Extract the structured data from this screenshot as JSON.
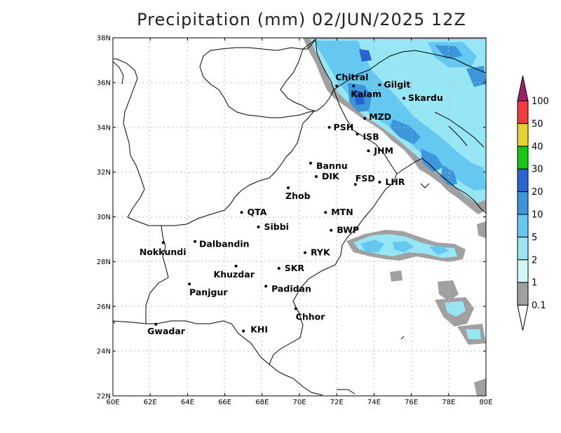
{
  "title": "Precipitation (mm) 02/JUN/2025 12Z",
  "axes": {
    "x_ticks": [
      "60E",
      "62E",
      "64E",
      "66E",
      "68E",
      "70E",
      "72E",
      "74E",
      "76E",
      "78E",
      "80E"
    ],
    "y_ticks": [
      "22N",
      "24N",
      "26N",
      "28N",
      "30N",
      "32N",
      "34N",
      "36N",
      "38N"
    ],
    "lon_range": [
      60,
      80
    ],
    "lat_range": [
      22,
      38
    ]
  },
  "colorbar": {
    "levels": [
      "0.1",
      "1",
      "2",
      "5",
      "10",
      "20",
      "30",
      "40",
      "50",
      "100"
    ],
    "colors": [
      "#a0a0a0",
      "#d2f5f5",
      "#96e6f5",
      "#64c8f0",
      "#3c96dc",
      "#2864d2",
      "#14c814",
      "#e6d232",
      "#f03c3c",
      "#a01e6e"
    ]
  },
  "cities": [
    {
      "name": "Chitral",
      "lon": 72.0,
      "lat": 35.85
    },
    {
      "name": "Gilgit",
      "lon": 74.3,
      "lat": 35.9
    },
    {
      "name": "Kalam",
      "lon": 72.9,
      "lat": 35.85
    },
    {
      "name": "Skardu",
      "lon": 75.6,
      "lat": 35.3
    },
    {
      "name": "MZD",
      "lon": 73.5,
      "lat": 34.4
    },
    {
      "name": "PSH",
      "lon": 71.6,
      "lat": 34.0
    },
    {
      "name": "ISB",
      "lon": 73.1,
      "lat": 33.7
    },
    {
      "name": "JHM",
      "lon": 73.7,
      "lat": 32.95
    },
    {
      "name": "Bannu",
      "lon": 70.6,
      "lat": 32.4
    },
    {
      "name": "DIK",
      "lon": 70.9,
      "lat": 31.8
    },
    {
      "name": "FSD",
      "lon": 73.0,
      "lat": 31.45
    },
    {
      "name": "LHR",
      "lon": 74.3,
      "lat": 31.55
    },
    {
      "name": "Zhob",
      "lon": 69.4,
      "lat": 31.3
    },
    {
      "name": "QTA",
      "lon": 66.9,
      "lat": 30.2
    },
    {
      "name": "MTN",
      "lon": 71.4,
      "lat": 30.2
    },
    {
      "name": "Sibbi",
      "lon": 67.8,
      "lat": 29.55
    },
    {
      "name": "BWP",
      "lon": 71.7,
      "lat": 29.4
    },
    {
      "name": "Dalbandin",
      "lon": 64.4,
      "lat": 28.9
    },
    {
      "name": "Nokkundi",
      "lon": 62.7,
      "lat": 28.85
    },
    {
      "name": "RYK",
      "lon": 70.3,
      "lat": 28.4
    },
    {
      "name": "Khuzdar",
      "lon": 66.6,
      "lat": 27.8
    },
    {
      "name": "SKR",
      "lon": 68.9,
      "lat": 27.7
    },
    {
      "name": "Panjgur",
      "lon": 64.1,
      "lat": 27.0
    },
    {
      "name": "Padidan",
      "lon": 68.2,
      "lat": 26.9
    },
    {
      "name": "Chhor",
      "lon": 69.8,
      "lat": 25.9
    },
    {
      "name": "KHI",
      "lon": 67.0,
      "lat": 24.9
    },
    {
      "name": "Gwadar",
      "lon": 62.3,
      "lat": 25.2
    }
  ]
}
